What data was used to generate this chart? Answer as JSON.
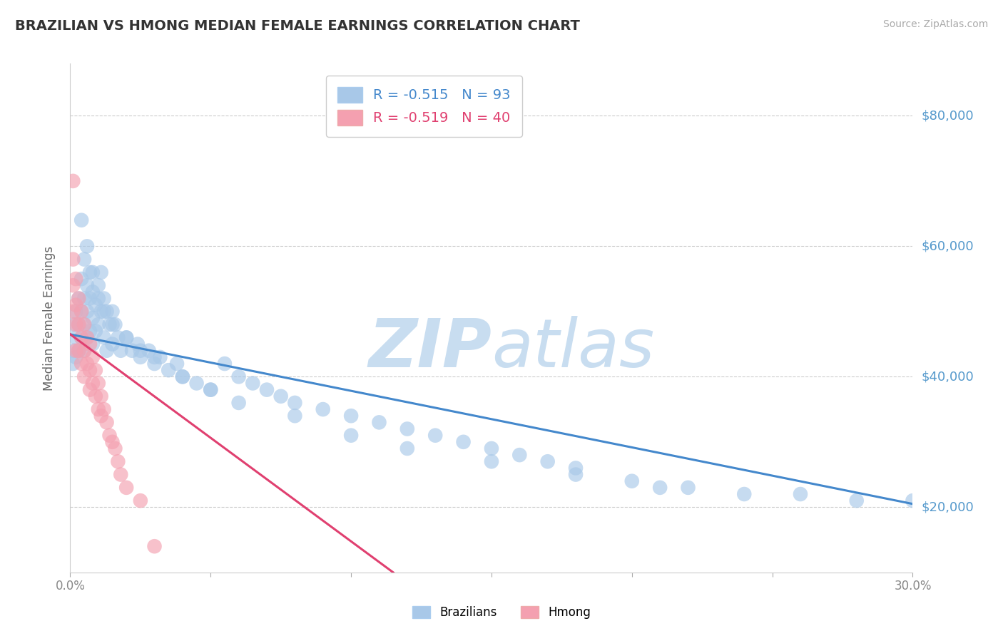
{
  "title": "BRAZILIAN VS HMONG MEDIAN FEMALE EARNINGS CORRELATION CHART",
  "source_text": "Source: ZipAtlas.com",
  "ylabel": "Median Female Earnings",
  "xlim": [
    0.0,
    0.3
  ],
  "ylim": [
    10000,
    88000
  ],
  "yticks": [
    20000,
    40000,
    60000,
    80000
  ],
  "ytick_labels": [
    "$20,000",
    "$40,000",
    "$60,000",
    "$80,000"
  ],
  "brazil_R": -0.515,
  "brazil_N": 93,
  "hmong_R": -0.519,
  "hmong_N": 40,
  "brazil_color": "#a8c8e8",
  "hmong_color": "#f4a0b0",
  "brazil_line_color": "#4488cc",
  "hmong_line_color": "#e04070",
  "grid_color": "#cccccc",
  "title_color": "#333333",
  "axis_label_color": "#666666",
  "ytick_color": "#5599cc",
  "watermark_color": "#c8ddf0",
  "legend_brazil_label": "Brazilians",
  "legend_hmong_label": "Hmong",
  "brazil_line_x0": 0.0,
  "brazil_line_y0": 46500,
  "brazil_line_x1": 0.3,
  "brazil_line_y1": 20500,
  "hmong_line_x0": 0.0,
  "hmong_line_y0": 46500,
  "hmong_line_x1": 0.115,
  "hmong_line_y1": 10000,
  "brazil_x": [
    0.001,
    0.001,
    0.001,
    0.002,
    0.002,
    0.002,
    0.003,
    0.003,
    0.003,
    0.004,
    0.004,
    0.004,
    0.005,
    0.005,
    0.005,
    0.005,
    0.006,
    0.006,
    0.006,
    0.007,
    0.007,
    0.007,
    0.008,
    0.008,
    0.008,
    0.009,
    0.009,
    0.01,
    0.01,
    0.011,
    0.011,
    0.012,
    0.012,
    0.013,
    0.013,
    0.014,
    0.015,
    0.015,
    0.016,
    0.017,
    0.018,
    0.02,
    0.022,
    0.024,
    0.025,
    0.028,
    0.03,
    0.032,
    0.035,
    0.038,
    0.04,
    0.045,
    0.05,
    0.055,
    0.06,
    0.065,
    0.07,
    0.075,
    0.08,
    0.09,
    0.1,
    0.11,
    0.12,
    0.13,
    0.14,
    0.15,
    0.16,
    0.17,
    0.18,
    0.2,
    0.22,
    0.24,
    0.26,
    0.28,
    0.3,
    0.004,
    0.006,
    0.008,
    0.01,
    0.012,
    0.015,
    0.02,
    0.025,
    0.03,
    0.04,
    0.05,
    0.06,
    0.08,
    0.1,
    0.12,
    0.15,
    0.18,
    0.21
  ],
  "brazil_y": [
    48000,
    44000,
    42000,
    50000,
    46000,
    43000,
    52000,
    48000,
    44000,
    55000,
    50000,
    46000,
    58000,
    52000,
    48000,
    44000,
    54000,
    50000,
    46000,
    56000,
    52000,
    47000,
    53000,
    49000,
    45000,
    51000,
    47000,
    54000,
    48000,
    56000,
    50000,
    52000,
    46000,
    50000,
    44000,
    48000,
    50000,
    45000,
    48000,
    46000,
    44000,
    46000,
    44000,
    45000,
    43000,
    44000,
    42000,
    43000,
    41000,
    42000,
    40000,
    39000,
    38000,
    42000,
    40000,
    39000,
    38000,
    37000,
    36000,
    35000,
    34000,
    33000,
    32000,
    31000,
    30000,
    29000,
    28000,
    27000,
    26000,
    24000,
    23000,
    22000,
    22000,
    21000,
    21000,
    64000,
    60000,
    56000,
    52000,
    50000,
    48000,
    46000,
    44000,
    43000,
    40000,
    38000,
    36000,
    34000,
    31000,
    29000,
    27000,
    25000,
    23000
  ],
  "hmong_x": [
    0.001,
    0.001,
    0.001,
    0.001,
    0.002,
    0.002,
    0.002,
    0.002,
    0.003,
    0.003,
    0.003,
    0.004,
    0.004,
    0.004,
    0.005,
    0.005,
    0.005,
    0.006,
    0.006,
    0.007,
    0.007,
    0.007,
    0.008,
    0.008,
    0.009,
    0.009,
    0.01,
    0.01,
    0.011,
    0.011,
    0.012,
    0.013,
    0.014,
    0.015,
    0.016,
    0.017,
    0.018,
    0.02,
    0.025,
    0.03
  ],
  "hmong_y": [
    70000,
    58000,
    54000,
    50000,
    55000,
    51000,
    48000,
    44000,
    52000,
    48000,
    44000,
    50000,
    46000,
    42000,
    48000,
    44000,
    40000,
    46000,
    42000,
    45000,
    41000,
    38000,
    43000,
    39000,
    41000,
    37000,
    39000,
    35000,
    37000,
    34000,
    35000,
    33000,
    31000,
    30000,
    29000,
    27000,
    25000,
    23000,
    21000,
    14000
  ]
}
